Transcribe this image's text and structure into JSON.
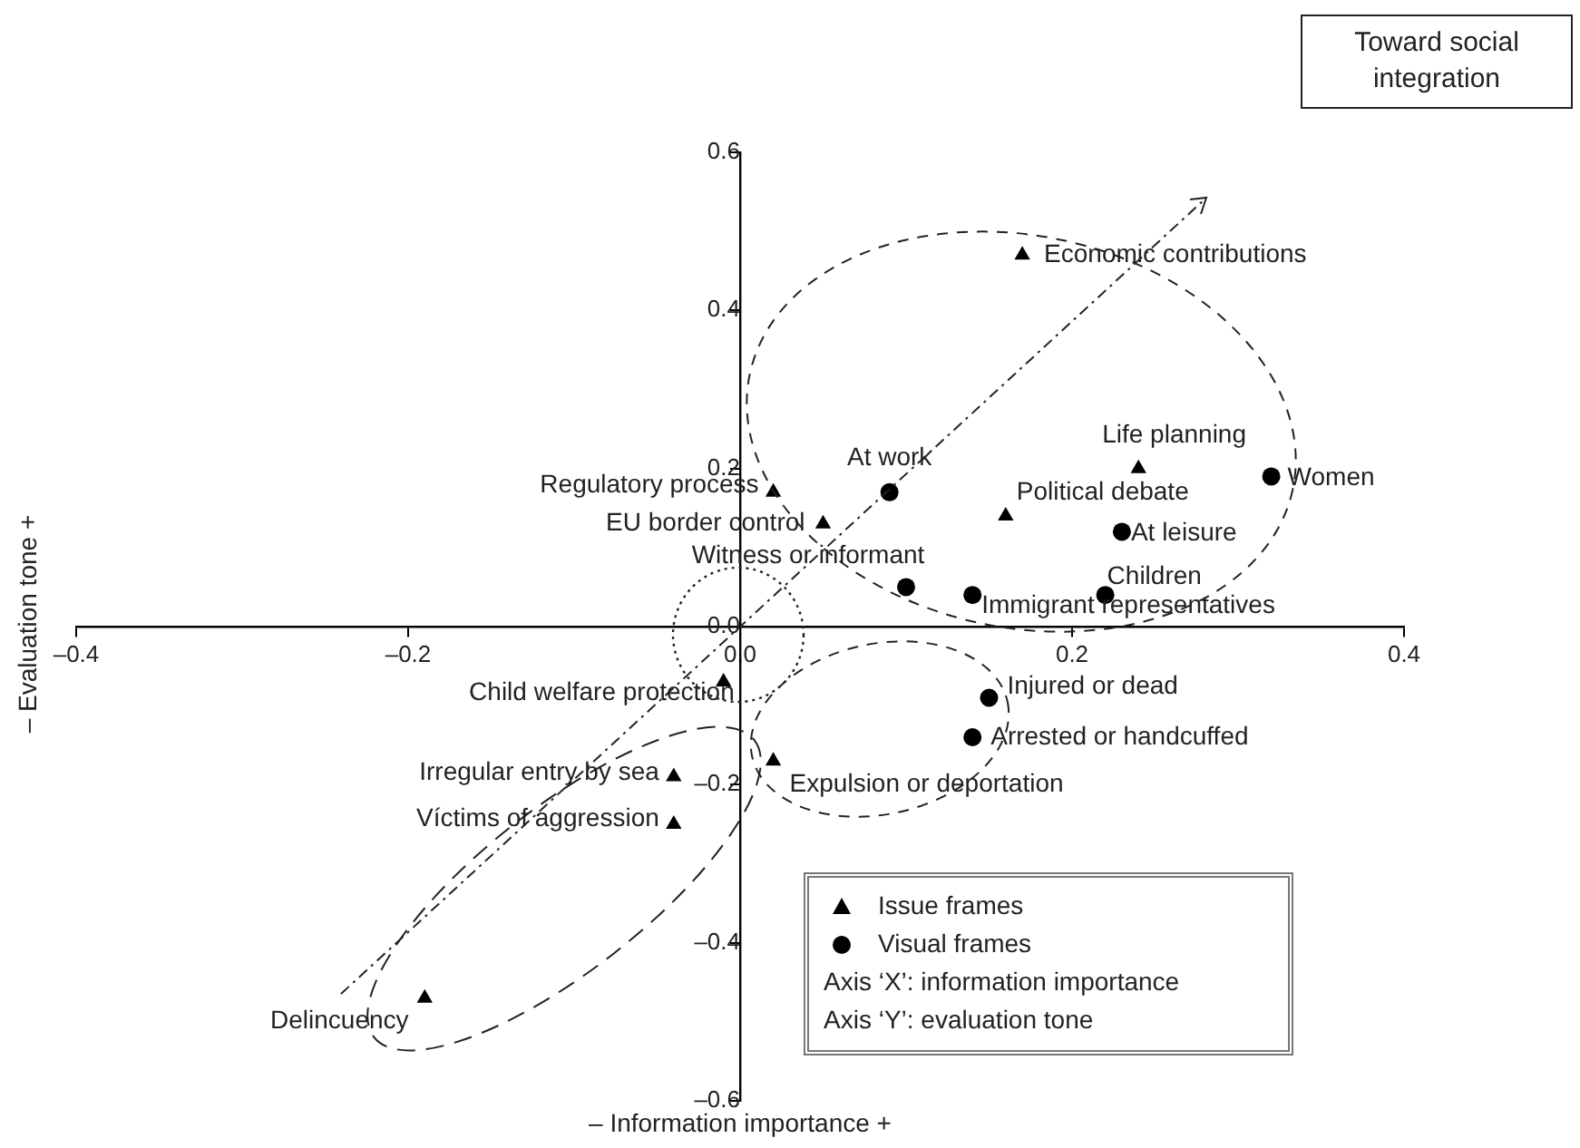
{
  "chart_data": {
    "type": "scatter",
    "xlabel": "– Information importance +",
    "ylabel": "– Evaluation tone +",
    "xlim": [
      -0.4,
      0.4
    ],
    "ylim": [
      -0.6,
      0.6
    ],
    "xticks": [
      {
        "value": -0.4,
        "label": "–0.4"
      },
      {
        "value": -0.2,
        "label": "–0.2"
      },
      {
        "value": 0,
        "label": "0.0"
      },
      0.2,
      0.4
    ],
    "yticks": [
      {
        "value": -0.6,
        "label": "–0.6"
      },
      {
        "value": -0.4,
        "label": "–0.4"
      },
      {
        "value": -0.2,
        "label": "–0.2"
      },
      {
        "value": 0,
        "label": "0.0"
      },
      0.2,
      0.4,
      0.6
    ],
    "grid": false,
    "legend": "bottom right",
    "series": [
      {
        "name": "Issue frames",
        "color": "#000000",
        "marker": "triangle",
        "x": [
          0.17,
          0.24,
          0.02,
          0.05,
          0.16,
          -0.01,
          -0.04,
          -0.04,
          -0.19,
          0.02
        ],
        "values": [
          0.47,
          0.2,
          0.17,
          0.13,
          0.14,
          -0.07,
          -0.19,
          -0.25,
          -0.47,
          -0.17
        ]
      },
      {
        "name": "Visual frames",
        "color": "#000000",
        "marker": "circle",
        "x": [
          0.32,
          0.09,
          0.23,
          0.1,
          0.14,
          0.22,
          0.15,
          0.14
        ],
        "values": [
          0.19,
          0.17,
          0.12,
          0.05,
          0.04,
          0.04,
          -0.09,
          -0.14
        ]
      }
    ],
    "annotations": [
      {
        "text": "Economic contributions",
        "x": 0.17,
        "y": 0.47
      },
      {
        "text": "Life planning",
        "x": 0.24,
        "y": 0.2
      },
      {
        "text": "Regulatory process",
        "x": 0.02,
        "y": 0.17
      },
      {
        "text": "EU border control",
        "x": 0.05,
        "y": 0.13
      },
      {
        "text": "Political debate",
        "x": 0.16,
        "y": 0.14
      },
      {
        "text": "Child welfare protection",
        "x": -0.01,
        "y": -0.07
      },
      {
        "text": "Irregular entry by sea",
        "x": -0.04,
        "y": -0.19
      },
      {
        "text": "Víctims of aggression",
        "x": -0.04,
        "y": -0.25
      },
      {
        "text": "Delincuency",
        "x": -0.19,
        "y": -0.47
      },
      {
        "text": "Expulsion or deportation",
        "x": 0.02,
        "y": -0.17
      },
      {
        "text": "Women",
        "x": 0.32,
        "y": 0.19
      },
      {
        "text": "At work",
        "x": 0.09,
        "y": 0.17
      },
      {
        "text": "At leisure",
        "x": 0.23,
        "y": 0.12
      },
      {
        "text": "Witness or informant",
        "x": 0.1,
        "y": 0.05
      },
      {
        "text": "Immigrant representatives",
        "x": 0.14,
        "y": 0.04
      },
      {
        "text": "Children",
        "x": 0.22,
        "y": 0.04
      },
      {
        "text": "Injured or dead",
        "x": 0.15,
        "y": -0.09
      },
      {
        "text": "Arrested or handcuffed",
        "x": 0.14,
        "y": -0.14
      },
      "Toward social integration",
      "Axis ‘X’: information importance",
      "Axis ‘Y’: evaluation tone"
    ]
  }
}
